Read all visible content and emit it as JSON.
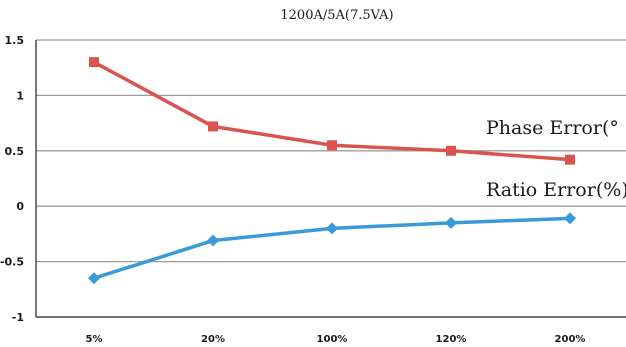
{
  "chart_data": {
    "type": "line",
    "title": "1200A/5A(7.5VA)",
    "categories": [
      "5%",
      "20%",
      "100%",
      "120%",
      "200%"
    ],
    "ylim": [
      -1,
      1.5
    ],
    "yticks": [
      "1.5",
      "1",
      "0.5",
      "0",
      "-0.5",
      "-1"
    ],
    "ytick_values": [
      1.5,
      1,
      0.5,
      0,
      -0.5,
      -1
    ],
    "grid": true,
    "series": [
      {
        "name": "Phase Error(°",
        "values": [
          1.3,
          0.72,
          0.55,
          0.5,
          0.42
        ],
        "color": "#d9534f",
        "marker": "square"
      },
      {
        "name": "Ratio Error(%)",
        "values": [
          -0.65,
          -0.31,
          -0.2,
          -0.15,
          -0.11
        ],
        "color": "#3a9ad9",
        "marker": "diamond"
      }
    ]
  },
  "colors": {
    "grid": "#9c9c9c",
    "axis": "#4a4a4a"
  }
}
